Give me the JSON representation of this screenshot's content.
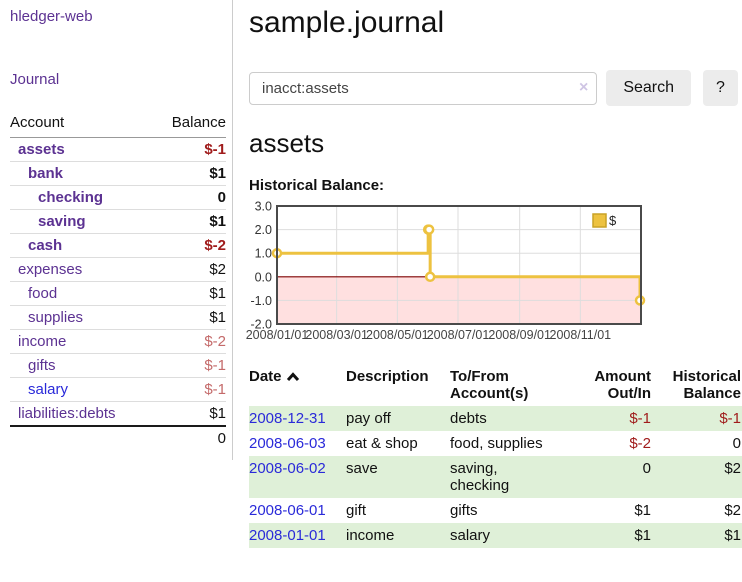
{
  "sidebar": {
    "brand": "hledger-web",
    "journal_link": "Journal",
    "accounts_table": {
      "headers": [
        "Account",
        "Balance"
      ],
      "rows": [
        {
          "account": "assets",
          "depth": 0,
          "bold": true,
          "blue": false,
          "balance": "$-1",
          "style": "neg-strong"
        },
        {
          "account": "bank",
          "depth": 1,
          "bold": true,
          "blue": false,
          "balance": "$1",
          "style": "pos-strong"
        },
        {
          "account": "checking",
          "depth": 2,
          "bold": true,
          "blue": false,
          "balance": "0",
          "style": "pos-strong"
        },
        {
          "account": "saving",
          "depth": 2,
          "bold": true,
          "blue": false,
          "balance": "$1",
          "style": "pos-strong"
        },
        {
          "account": "cash",
          "depth": 1,
          "bold": true,
          "blue": false,
          "balance": "$-2",
          "style": "neg-strong"
        },
        {
          "account": "expenses",
          "depth": 0,
          "bold": false,
          "blue": false,
          "balance": "$2",
          "style": "plain"
        },
        {
          "account": "food",
          "depth": 1,
          "bold": false,
          "blue": false,
          "balance": "$1",
          "style": "plain"
        },
        {
          "account": "supplies",
          "depth": 1,
          "bold": false,
          "blue": false,
          "balance": "$1",
          "style": "plain"
        },
        {
          "account": "income",
          "depth": 0,
          "bold": false,
          "blue": false,
          "balance": "$-2",
          "style": "neg-soft"
        },
        {
          "account": "gifts",
          "depth": 1,
          "bold": false,
          "blue": false,
          "balance": "$-1",
          "style": "neg-soft"
        },
        {
          "account": "salary",
          "depth": 1,
          "bold": false,
          "blue": true,
          "balance": "$-1",
          "style": "neg-soft"
        },
        {
          "account": "liabilities:debts",
          "depth": 0,
          "bold": false,
          "blue": false,
          "balance": "$1",
          "style": "plain"
        }
      ],
      "total": "0"
    }
  },
  "header": {
    "title": "sample.journal"
  },
  "search": {
    "value": "inacct:assets",
    "clear_icon": "×",
    "search_label": "Search",
    "help_label": "?"
  },
  "account_page": {
    "title": "assets",
    "chart_label": "Historical Balance:"
  },
  "chart_data": {
    "type": "line",
    "step": true,
    "title": "Historical Balance",
    "legend": [
      {
        "label": "$",
        "color": "#edc240"
      }
    ],
    "legend_position": "top-right",
    "grid": true,
    "ylim": [
      -2.0,
      3.0
    ],
    "yticks": [
      "3.0",
      "2.0",
      "1.0",
      "0.0",
      "-1.0",
      "-2.0"
    ],
    "ytick_values": [
      3,
      2,
      1,
      0,
      -1,
      -2
    ],
    "xticks": [
      {
        "label": "2008/01/01",
        "f": 0.0
      },
      {
        "label": "2008/03/01",
        "f": 0.1639
      },
      {
        "label": "2008/05/01",
        "f": 0.3306
      },
      {
        "label": "2008/07/01",
        "f": 0.4973
      },
      {
        "label": "2008/09/01",
        "f": 0.6667
      },
      {
        "label": "2008/11/01",
        "f": 0.8333
      }
    ],
    "series": [
      {
        "name": "$",
        "color": "#edc240",
        "points": [
          {
            "date": "2008/01/01",
            "f": 0.0,
            "y": 1
          },
          {
            "date": "2008/06/01",
            "f": 0.4153,
            "y": 2
          },
          {
            "date": "2008/06/02",
            "f": 0.418,
            "y": 2
          },
          {
            "date": "2008/06/03",
            "f": 0.4208,
            "y": 0
          },
          {
            "date": "2008/12/31",
            "f": 0.9973,
            "y": -1
          }
        ]
      }
    ],
    "negative_region_color": "rgba(255,0,0,0.12)",
    "zero_line_color": "#7f0000",
    "gridline_color": "#dddddd",
    "border_color": "#4a4a4a"
  },
  "register_table": {
    "headers": {
      "date": "Date",
      "description": "Description",
      "account": "To/From Account(s)",
      "amount": "Amount Out/In",
      "balance": "Historical Balance"
    },
    "rows": [
      {
        "date": "2008-12-31",
        "description": "pay off",
        "accounts": "debts",
        "amount": "$-1",
        "amount_neg": true,
        "balance": "$-1",
        "balance_neg": true,
        "green": true
      },
      {
        "date": "2008-06-03",
        "description": "eat & shop",
        "accounts": "food, supplies",
        "amount": "$-2",
        "amount_neg": true,
        "balance": "0",
        "balance_neg": false,
        "green": false
      },
      {
        "date": "2008-06-02",
        "description": "save",
        "accounts": "saving, checking",
        "amount": "0",
        "amount_neg": false,
        "balance": "$2",
        "balance_neg": false,
        "green": true
      },
      {
        "date": "2008-06-01",
        "description": "gift",
        "accounts": "gifts",
        "amount": "$1",
        "amount_neg": false,
        "balance": "$2",
        "balance_neg": false,
        "green": false
      },
      {
        "date": "2008-01-01",
        "description": "income",
        "accounts": "salary",
        "amount": "$1",
        "amount_neg": false,
        "balance": "$1",
        "balance_neg": false,
        "green": true
      }
    ]
  }
}
